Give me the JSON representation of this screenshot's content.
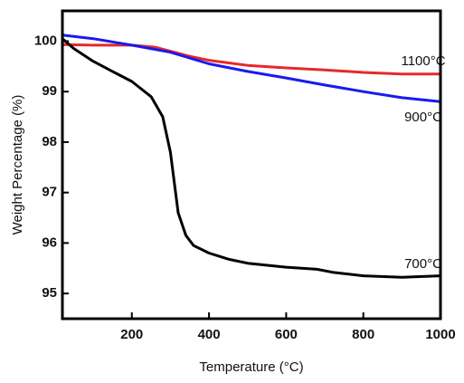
{
  "chart_data": {
    "type": "line",
    "x_label": "Temperature (°C)",
    "y_label": "Weight Percentage (%)",
    "xlim": [
      20,
      1000
    ],
    "ylim": [
      94.5,
      100.6
    ],
    "xticks": [
      200,
      400,
      600,
      800,
      1000
    ],
    "yticks": [
      95,
      96,
      97,
      98,
      99,
      100
    ],
    "series": [
      {
        "name": "1100°C",
        "color": "#e8282a",
        "x": [
          20,
          100,
          200,
          260,
          300,
          350,
          400,
          500,
          600,
          700,
          800,
          900,
          1000
        ],
        "values": [
          99.93,
          99.92,
          99.92,
          99.88,
          99.8,
          99.7,
          99.62,
          99.52,
          99.47,
          99.43,
          99.38,
          99.35,
          99.35
        ]
      },
      {
        "name": "900°C",
        "color": "#1a1aee",
        "x": [
          20,
          100,
          200,
          300,
          400,
          500,
          600,
          700,
          800,
          900,
          1000
        ],
        "values": [
          100.12,
          100.05,
          99.92,
          99.78,
          99.55,
          99.4,
          99.27,
          99.13,
          99.0,
          98.88,
          98.8
        ]
      },
      {
        "name": "700°C",
        "color": "#000000",
        "x": [
          20,
          50,
          100,
          150,
          200,
          250,
          280,
          300,
          310,
          320,
          340,
          360,
          400,
          450,
          500,
          600,
          680,
          720,
          800,
          900,
          1000
        ],
        "values": [
          100.05,
          99.85,
          99.6,
          99.4,
          99.2,
          98.9,
          98.5,
          97.8,
          97.2,
          96.6,
          96.15,
          95.95,
          95.8,
          95.68,
          95.6,
          95.52,
          95.48,
          95.42,
          95.35,
          95.32,
          95.35
        ]
      }
    ]
  }
}
